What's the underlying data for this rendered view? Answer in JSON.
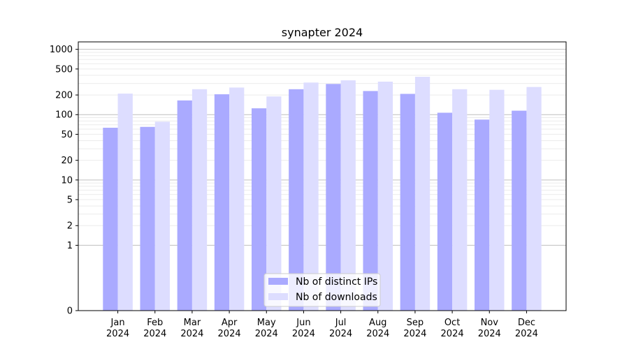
{
  "chart_data": {
    "type": "bar",
    "title": "synapter 2024",
    "xlabel": "",
    "ylabel": "",
    "yscale": "symlog",
    "ylim": [
      0,
      1300
    ],
    "yticks": [
      0,
      1,
      2,
      5,
      10,
      20,
      50,
      100,
      200,
      500,
      1000
    ],
    "categories": [
      "Jan\n2024",
      "Feb\n2024",
      "Mar\n2024",
      "Apr\n2024",
      "May\n2024",
      "Jun\n2024",
      "Jul\n2024",
      "Aug\n2024",
      "Sep\n2024",
      "Oct\n2024",
      "Nov\n2024",
      "Dec\n2024"
    ],
    "series": [
      {
        "name": "Nb of distinct IPs",
        "color": "#aaaaff",
        "values": [
          63,
          65,
          165,
          205,
          125,
          245,
          295,
          230,
          208,
          107,
          84,
          115
        ]
      },
      {
        "name": "Nb of downloads",
        "color": "#ddddff",
        "values": [
          210,
          78,
          245,
          260,
          190,
          310,
          335,
          320,
          380,
          245,
          240,
          265
        ]
      }
    ],
    "legend": "bottom-center",
    "grid": true
  }
}
